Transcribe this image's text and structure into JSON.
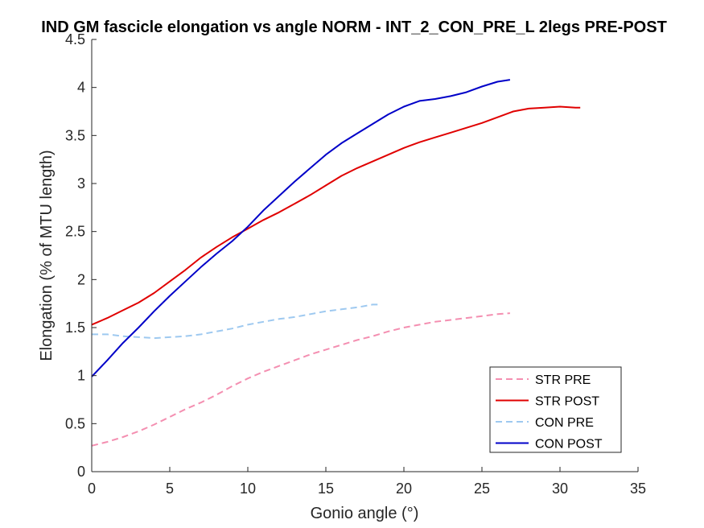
{
  "chart_data": {
    "type": "line",
    "title": "IND GM fascicle elongation vs angle NORM - INT_2_CON_PRE_L 2legs PRE-POST",
    "xlabel": "Gonio angle (°)",
    "ylabel": "Elongation (% of MTU length)",
    "xlim": [
      0,
      35
    ],
    "ylim": [
      0,
      4.5
    ],
    "xticks": [
      0,
      5,
      10,
      15,
      20,
      25,
      30,
      35
    ],
    "yticks": [
      0,
      0.5,
      1,
      1.5,
      2,
      2.5,
      3,
      3.5,
      4,
      4.5
    ],
    "xtick_labels": [
      "0",
      "5",
      "10",
      "15",
      "20",
      "25",
      "30",
      "35"
    ],
    "ytick_labels": [
      "0",
      "0.5",
      "1",
      "1.5",
      "2",
      "2.5",
      "3",
      "3.5",
      "4",
      "4.5"
    ],
    "grid": false,
    "legend_position": "bottom-right",
    "series": [
      {
        "name": "STR PRE",
        "color": "#f48fb1",
        "dash": "dashed",
        "x": [
          0,
          1,
          2,
          3,
          4,
          5,
          6,
          7,
          8,
          9,
          10,
          11,
          12,
          13,
          14,
          15,
          16,
          17,
          18,
          19,
          20,
          21,
          22,
          23,
          24,
          25,
          26,
          26.8
        ],
        "y": [
          0.27,
          0.31,
          0.36,
          0.42,
          0.49,
          0.57,
          0.65,
          0.72,
          0.8,
          0.89,
          0.97,
          1.04,
          1.1,
          1.16,
          1.22,
          1.27,
          1.32,
          1.37,
          1.41,
          1.46,
          1.5,
          1.53,
          1.56,
          1.58,
          1.6,
          1.62,
          1.64,
          1.65
        ]
      },
      {
        "name": "STR POST",
        "color": "#e00000",
        "dash": "solid",
        "x": [
          0,
          1,
          2,
          3,
          4,
          5,
          6,
          7,
          8,
          9,
          10,
          11,
          12,
          13,
          14,
          15,
          16,
          17,
          18,
          19,
          20,
          21,
          22,
          23,
          24,
          25,
          26,
          27,
          28,
          29,
          30,
          31,
          31.3
        ],
        "y": [
          1.53,
          1.6,
          1.68,
          1.76,
          1.86,
          1.98,
          2.1,
          2.23,
          2.34,
          2.44,
          2.53,
          2.62,
          2.7,
          2.79,
          2.88,
          2.98,
          3.08,
          3.16,
          3.23,
          3.3,
          3.37,
          3.43,
          3.48,
          3.53,
          3.58,
          3.63,
          3.69,
          3.75,
          3.78,
          3.79,
          3.8,
          3.79,
          3.79
        ]
      },
      {
        "name": "CON PRE",
        "color": "#9ec9f0",
        "dash": "dashed",
        "x": [
          0,
          1,
          2,
          3,
          4,
          5,
          6,
          7,
          8,
          9,
          10,
          11,
          12,
          13,
          14,
          15,
          16,
          17,
          18,
          18.4
        ],
        "y": [
          1.43,
          1.43,
          1.41,
          1.4,
          1.39,
          1.4,
          1.41,
          1.43,
          1.46,
          1.49,
          1.53,
          1.56,
          1.59,
          1.61,
          1.64,
          1.67,
          1.69,
          1.71,
          1.74,
          1.74
        ]
      },
      {
        "name": "CON POST",
        "color": "#0000c8",
        "dash": "solid",
        "x": [
          0,
          1,
          2,
          3,
          4,
          5,
          6,
          7,
          8,
          9,
          10,
          11,
          12,
          13,
          14,
          15,
          16,
          17,
          18,
          19,
          20,
          21,
          22,
          23,
          24,
          25,
          26,
          26.8
        ],
        "y": [
          0.99,
          1.16,
          1.34,
          1.5,
          1.67,
          1.83,
          1.98,
          2.13,
          2.27,
          2.4,
          2.55,
          2.72,
          2.87,
          3.02,
          3.16,
          3.3,
          3.42,
          3.52,
          3.62,
          3.72,
          3.8,
          3.86,
          3.88,
          3.91,
          3.95,
          4.01,
          4.06,
          4.08
        ]
      }
    ]
  }
}
